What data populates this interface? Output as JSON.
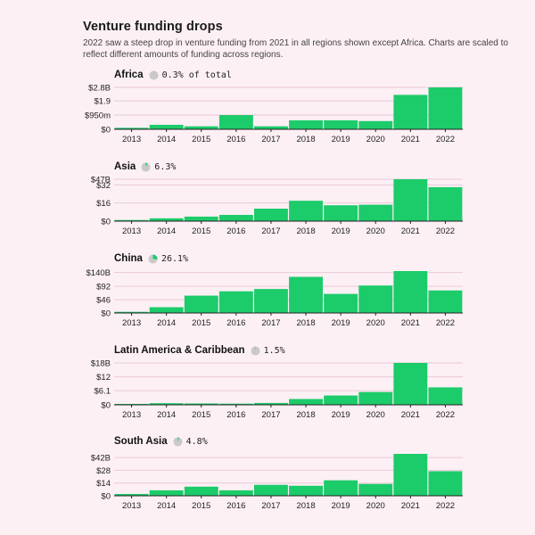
{
  "title": "Venture funding drops",
  "subtitle": "2022 saw a steep drop in venture funding from 2021 in all regions shown except Africa. Charts are scaled to reflect different amounts of funding across regions.",
  "colors": {
    "bar": "#1ccb6a",
    "grid": "#e8c9d6",
    "pie_bg": "#c9c9c9",
    "pie_fill": "#1ccb6a"
  },
  "chart_data": [
    {
      "type": "bar",
      "title": "Africa",
      "share_label": "0.3% of total",
      "share": 0.003,
      "categories": [
        "2013",
        "2014",
        "2015",
        "2016",
        "2017",
        "2018",
        "2019",
        "2020",
        "2021",
        "2022"
      ],
      "values": [
        0.1,
        0.3,
        0.2,
        0.95,
        0.2,
        0.6,
        0.6,
        0.55,
        2.3,
        2.8
      ],
      "ylim": [
        0,
        2.8
      ],
      "yticks": [
        {
          "v": 0,
          "label": "$0"
        },
        {
          "v": 0.95,
          "label": "$950m"
        },
        {
          "v": 1.9,
          "label": "$1.9"
        },
        {
          "v": 2.8,
          "label": "$2.8B"
        }
      ]
    },
    {
      "type": "bar",
      "title": "Asia",
      "share_label": "6.3%",
      "share": 0.063,
      "categories": [
        "2013",
        "2014",
        "2015",
        "2016",
        "2017",
        "2018",
        "2019",
        "2020",
        "2021",
        "2022"
      ],
      "values": [
        1,
        2.5,
        4,
        5.5,
        11,
        18,
        14,
        14.5,
        37,
        30
      ],
      "ylim": [
        0,
        37
      ],
      "yticks": [
        {
          "v": 0,
          "label": "$0"
        },
        {
          "v": 16,
          "label": "$16"
        },
        {
          "v": 32,
          "label": "$32"
        },
        {
          "v": 47,
          "label": "$47B"
        }
      ]
    },
    {
      "type": "bar",
      "title": "China",
      "share_label": "26.1%",
      "share": 0.261,
      "categories": [
        "2013",
        "2014",
        "2015",
        "2016",
        "2017",
        "2018",
        "2019",
        "2020",
        "2021",
        "2022"
      ],
      "values": [
        4,
        20,
        60,
        75,
        83,
        125,
        66,
        95,
        145,
        78
      ],
      "ylim": [
        0,
        145
      ],
      "yticks": [
        {
          "v": 0,
          "label": "$0"
        },
        {
          "v": 46,
          "label": "$46"
        },
        {
          "v": 92,
          "label": "$92"
        },
        {
          "v": 140,
          "label": "$140B"
        }
      ]
    },
    {
      "type": "bar",
      "title": "Latin America & Caribbean",
      "share_label": "1.5%",
      "share": 0.015,
      "categories": [
        "2013",
        "2014",
        "2015",
        "2016",
        "2017",
        "2018",
        "2019",
        "2020",
        "2021",
        "2022"
      ],
      "values": [
        0.4,
        0.7,
        0.6,
        0.5,
        0.8,
        2.5,
        4.0,
        5.5,
        18.0,
        7.5
      ],
      "ylim": [
        0,
        18
      ],
      "yticks": [
        {
          "v": 0,
          "label": "$0"
        },
        {
          "v": 6.1,
          "label": "$6.1"
        },
        {
          "v": 12,
          "label": "$12"
        },
        {
          "v": 18,
          "label": "$18B"
        }
      ]
    },
    {
      "type": "bar",
      "title": "South Asia",
      "share_label": "4.8%",
      "share": 0.048,
      "categories": [
        "2013",
        "2014",
        "2015",
        "2016",
        "2017",
        "2018",
        "2019",
        "2020",
        "2021",
        "2022"
      ],
      "values": [
        2,
        6,
        10,
        6,
        12,
        11,
        17,
        13,
        46,
        27
      ],
      "ylim": [
        0,
        46
      ],
      "yticks": [
        {
          "v": 0,
          "label": "$0"
        },
        {
          "v": 14,
          "label": "$14"
        },
        {
          "v": 28,
          "label": "$28"
        },
        {
          "v": 42,
          "label": "$42B"
        }
      ]
    }
  ]
}
